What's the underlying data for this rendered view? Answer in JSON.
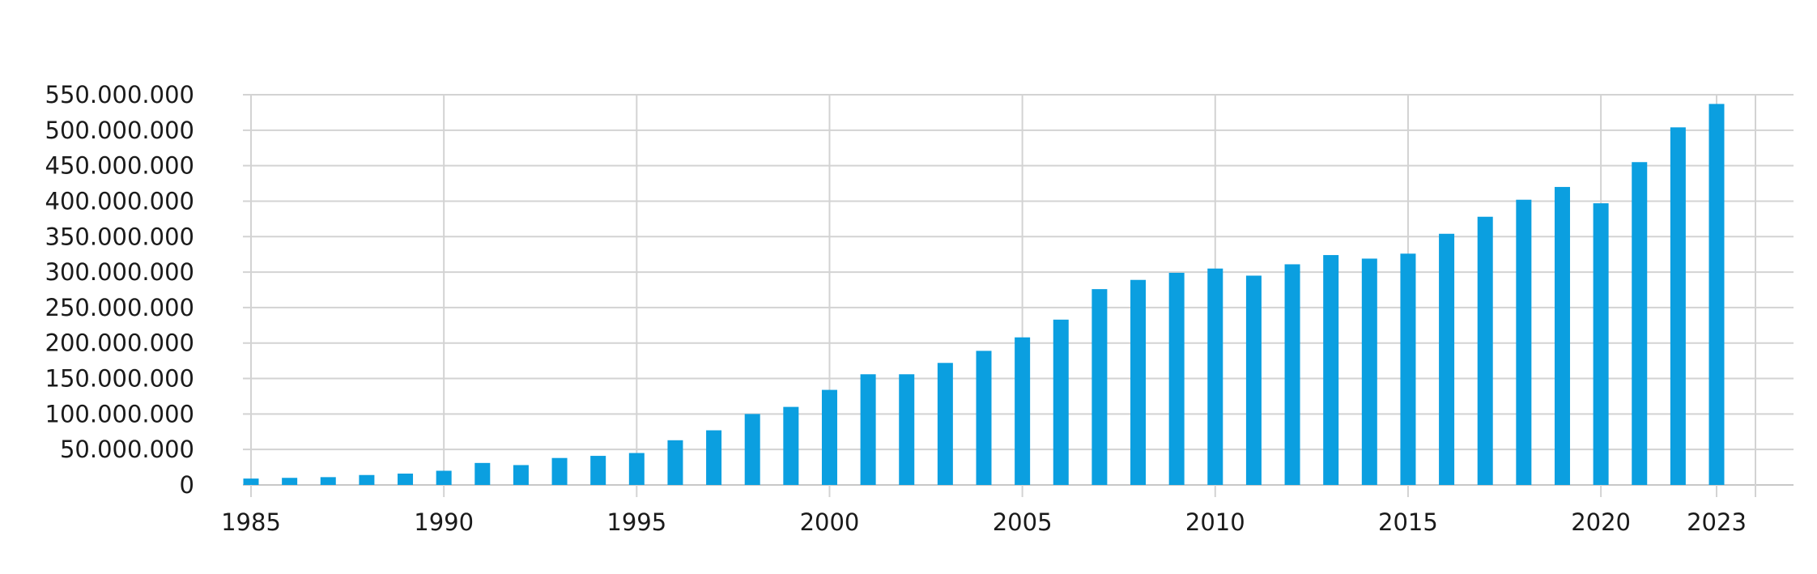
{
  "chart_data": {
    "type": "bar",
    "color": "#0b9fe0",
    "grid": true,
    "x": [
      1985,
      1986,
      1987,
      1988,
      1989,
      1990,
      1991,
      1992,
      1993,
      1994,
      1995,
      1996,
      1997,
      1998,
      1999,
      2000,
      2001,
      2002,
      2003,
      2004,
      2005,
      2006,
      2007,
      2008,
      2009,
      2010,
      2011,
      2012,
      2013,
      2014,
      2015,
      2016,
      2017,
      2018,
      2019,
      2020,
      2021,
      2022,
      2023
    ],
    "values": [
      9000000,
      10000000,
      11000000,
      14000000,
      16000000,
      20000000,
      31000000,
      28000000,
      38000000,
      41000000,
      45000000,
      63000000,
      77000000,
      100000000,
      110000000,
      134000000,
      156000000,
      156000000,
      172000000,
      189000000,
      208000000,
      233000000,
      276000000,
      289000000,
      299000000,
      305000000,
      295000000,
      311000000,
      324000000,
      319000000,
      326000000,
      354000000,
      378000000,
      402000000,
      420000000,
      397000000,
      455000000,
      504000000,
      537000000
    ],
    "ylim": [
      0,
      550000000
    ],
    "y_tick_labels": [
      "0",
      "50.000.000",
      "100.000.000",
      "150.000.000",
      "200.000.000",
      "250.000.000",
      "300.000.000",
      "350.000.000",
      "400.000.000",
      "450.000.000",
      "500.000.000",
      "550.000.000"
    ],
    "x_tick_labels": [
      "1985",
      "1990",
      "1995",
      "2000",
      "2005",
      "2010",
      "2015",
      "2020",
      "2023"
    ]
  }
}
